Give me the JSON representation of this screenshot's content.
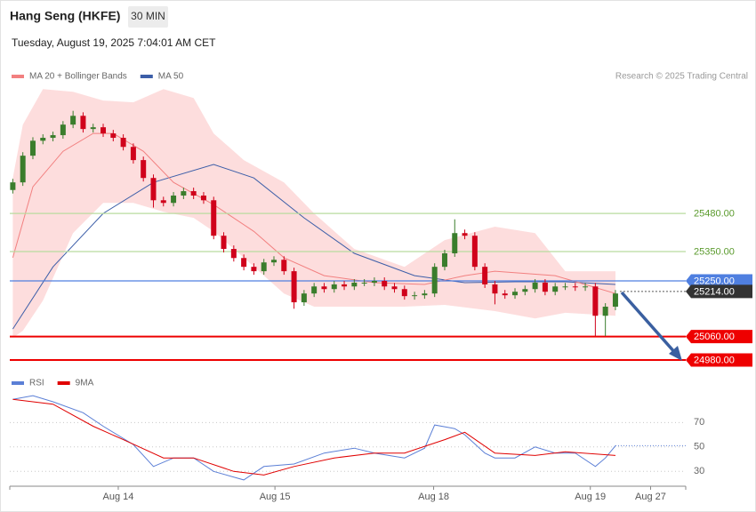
{
  "header": {
    "title": "Hang Seng (HKFE)",
    "interval": "30 MIN",
    "timestamp": "Tuesday, August 19, 2025 7:04:01 AM CET",
    "credit": "Research © 2025 Trading Central"
  },
  "chart_data": [
    {
      "type": "candlestick",
      "xlim": [
        -0.3,
        67
      ],
      "ylim": [
        24965,
        25920
      ],
      "up_color": "#3a7d2c",
      "down_color": "#d0021b",
      "x": [
        0,
        1,
        2,
        3,
        4,
        5,
        6,
        7,
        8,
        9,
        10,
        11,
        12,
        13,
        14,
        15,
        16,
        17,
        18,
        19,
        20,
        21,
        22,
        23,
        24,
        25,
        26,
        27,
        28,
        29,
        30,
        31,
        32,
        33,
        34,
        35,
        36,
        37,
        38,
        39,
        40,
        41,
        42,
        43,
        44,
        45,
        46,
        47,
        48,
        49,
        50,
        51,
        52,
        53,
        54,
        55,
        56,
        57,
        58,
        59,
        60
      ],
      "open": [
        25560,
        25586,
        25677,
        25728,
        25738,
        25747,
        25783,
        25813,
        25768,
        25774,
        25753,
        25738,
        25707,
        25662,
        25601,
        25525,
        25516,
        25541,
        25556,
        25541,
        25525,
        25404,
        25359,
        25328,
        25298,
        25283,
        25313,
        25322,
        25283,
        25177,
        25207,
        25231,
        25222,
        25238,
        25231,
        25244,
        25244,
        25250,
        25231,
        25222,
        25198,
        25201,
        25207,
        25298,
        25344,
        25413,
        25404,
        25298,
        25238,
        25207,
        25201,
        25213,
        25222,
        25244,
        25213,
        25231,
        25231,
        25228,
        25231,
        25131,
        25162
      ],
      "high": [
        25598,
        25689,
        25740,
        25750,
        25759,
        25795,
        25830,
        25825,
        25786,
        25786,
        25765,
        25750,
        25719,
        25674,
        25613,
        25537,
        25553,
        25568,
        25568,
        25553,
        25537,
        25416,
        25371,
        25340,
        25310,
        25325,
        25334,
        25334,
        25295,
        25219,
        25243,
        25243,
        25250,
        25250,
        25256,
        25256,
        25262,
        25262,
        25243,
        25234,
        25213,
        25219,
        25310,
        25356,
        25460,
        25425,
        25416,
        25310,
        25250,
        25219,
        25225,
        25234,
        25256,
        25256,
        25243,
        25243,
        25243,
        25243,
        25243,
        25174,
        25219
      ],
      "low": [
        25548,
        25574,
        25665,
        25716,
        25726,
        25735,
        25771,
        25756,
        25756,
        25741,
        25726,
        25695,
        25650,
        25589,
        25500,
        25504,
        25504,
        25529,
        25529,
        25513,
        25392,
        25347,
        25316,
        25286,
        25271,
        25271,
        25301,
        25271,
        25155,
        25165,
        25195,
        25210,
        25210,
        25219,
        25219,
        25232,
        25232,
        25219,
        25210,
        25186,
        25186,
        25189,
        25195,
        25286,
        25332,
        25392,
        25286,
        25226,
        25170,
        25189,
        25189,
        25201,
        25210,
        25201,
        25201,
        25219,
        25216,
        25216,
        25062,
        25062,
        25150
      ],
      "close": [
        25586,
        25677,
        25728,
        25738,
        25747,
        25783,
        25813,
        25768,
        25774,
        25753,
        25738,
        25707,
        25662,
        25601,
        25525,
        25516,
        25541,
        25556,
        25541,
        25525,
        25404,
        25359,
        25328,
        25298,
        25283,
        25313,
        25322,
        25283,
        25177,
        25207,
        25231,
        25222,
        25238,
        25231,
        25244,
        25244,
        25250,
        25231,
        25222,
        25198,
        25201,
        25207,
        25298,
        25344,
        25413,
        25404,
        25298,
        25238,
        25207,
        25201,
        25213,
        25222,
        25244,
        25213,
        25231,
        25231,
        25228,
        25231,
        25131,
        25162,
        25207
      ],
      "series": [
        {
          "name": "MA 20 + Bollinger Bands",
          "color": "#f28080",
          "band_color": "#fdd5d5",
          "x": [
            0,
            2,
            5,
            8,
            10,
            13,
            16,
            20,
            24,
            27,
            31,
            36,
            41,
            45,
            48,
            54,
            60
          ],
          "values": [
            25329,
            25571,
            25692,
            25753,
            25753,
            25692,
            25586,
            25510,
            25419,
            25329,
            25268,
            25244,
            25238,
            25268,
            25283,
            25268,
            25207
          ],
          "band_x": [
            0,
            1,
            3,
            6,
            9,
            12,
            15,
            18,
            20,
            23,
            27,
            30,
            34,
            39,
            43,
            48,
            52,
            55,
            60
          ],
          "band_upper": [
            25601,
            25783,
            25904,
            25895,
            25865,
            25859,
            25904,
            25874,
            25753,
            25662,
            25586,
            25480,
            25359,
            25298,
            25389,
            25435,
            25413,
            25283,
            25283
          ],
          "band_lower": [
            25056,
            25080,
            25183,
            25413,
            25516,
            25516,
            25486,
            25465,
            25419,
            25329,
            25207,
            25162,
            25162,
            25162,
            25168,
            25147,
            25122,
            25141,
            25131
          ]
        },
        {
          "name": "MA 50",
          "color": "#3c5ea8",
          "x": [
            0,
            4,
            9,
            14,
            20,
            24,
            29,
            34,
            40,
            45,
            50,
            55,
            60
          ],
          "values": [
            25086,
            25298,
            25480,
            25586,
            25647,
            25601,
            25465,
            25344,
            25268,
            25244,
            25247,
            25247,
            25238
          ]
        }
      ],
      "levels": [
        {
          "value": 25480,
          "label": "25480.00",
          "color": "#b9dc9f",
          "text_color": "#5a9a2c",
          "box": false,
          "dotted": false
        },
        {
          "value": 25350,
          "label": "25350.00",
          "color": "#b9dc9f",
          "text_color": "#5a9a2c",
          "box": false,
          "dotted": false
        },
        {
          "value": 25250,
          "label": "25250.00",
          "color": "#4f7fe0",
          "text_color": "#ffffff",
          "box": true,
          "dotted": false
        },
        {
          "value": 25214,
          "label": "25214.00",
          "color": "#333333",
          "text_color": "#ffffff",
          "box": true,
          "dotted": true
        },
        {
          "value": 25060,
          "label": "25060.00",
          "color": "#ee0000",
          "text_color": "#ffffff",
          "box": true,
          "dotted": false
        },
        {
          "value": 24980,
          "label": "24980.00",
          "color": "#ee0000",
          "text_color": "#ffffff",
          "box": true,
          "dotted": false
        }
      ]
    },
    {
      "type": "line",
      "xlim": [
        -0.3,
        67
      ],
      "ylim": [
        20,
        95
      ],
      "yticks": [
        30,
        50,
        70
      ],
      "grid": true,
      "xticks": [
        {
          "value": 10.5,
          "label": "Aug 14"
        },
        {
          "value": 26.1,
          "label": "Aug 15"
        },
        {
          "value": 41.9,
          "label": "Aug 18"
        },
        {
          "value": 57.5,
          "label": "Aug 19"
        },
        {
          "value": 63.5,
          "label": "Aug 27"
        }
      ],
      "series": [
        {
          "name": "RSI",
          "color": "#5b7fd6",
          "x": [
            0,
            2,
            4,
            7,
            9,
            12,
            14,
            16,
            18,
            20,
            23,
            25,
            28,
            31,
            34,
            36,
            39,
            41,
            42,
            44,
            45,
            47,
            48,
            50,
            52,
            54,
            56,
            58,
            59,
            60
          ],
          "values": [
            89,
            92,
            87,
            78,
            67,
            52,
            34,
            41,
            41,
            30,
            23,
            34,
            36,
            45,
            49,
            45,
            41,
            49,
            68,
            65,
            60,
            45,
            41,
            41,
            50,
            45,
            45,
            34,
            41,
            51
          ]
        },
        {
          "name": "9MA",
          "color": "#e00000",
          "x": [
            0,
            4,
            8,
            11,
            15,
            18,
            22,
            25,
            28,
            32,
            36,
            39,
            43,
            45,
            48,
            52,
            55,
            60
          ],
          "values": [
            89,
            85,
            67,
            56,
            41,
            41,
            30,
            27,
            34,
            41,
            45,
            45,
            56,
            62,
            45,
            43,
            46,
            43
          ]
        }
      ]
    }
  ]
}
